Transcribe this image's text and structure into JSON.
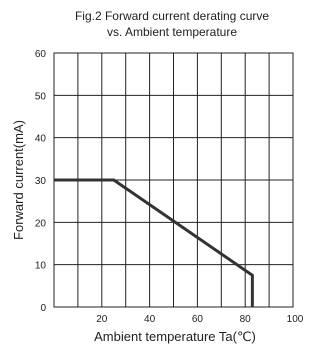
{
  "chart_data": {
    "type": "line",
    "title": [
      "Fig.2 Forward current derating curve",
      "vs. Ambient temperature"
    ],
    "xlabel": "Ambient temperature Ta(℃)",
    "ylabel": "Forward current(mA)",
    "xlim": [
      0,
      100
    ],
    "ylim": [
      0,
      60
    ],
    "x_ticks": [
      20,
      40,
      60,
      80,
      100
    ],
    "x_tick_labels": [
      "20",
      "40",
      "60",
      "80",
      "100"
    ],
    "y_ticks": [
      0,
      10,
      20,
      30,
      40,
      50,
      60
    ],
    "y_tick_labels": [
      "0",
      "10",
      "20",
      "30",
      "40",
      "50",
      "60"
    ],
    "grid": true,
    "legend": "none",
    "series": [
      {
        "x": [
          0,
          25,
          83,
          83
        ],
        "y": [
          30,
          30,
          7.5,
          0
        ],
        "color": "#333333"
      }
    ]
  }
}
